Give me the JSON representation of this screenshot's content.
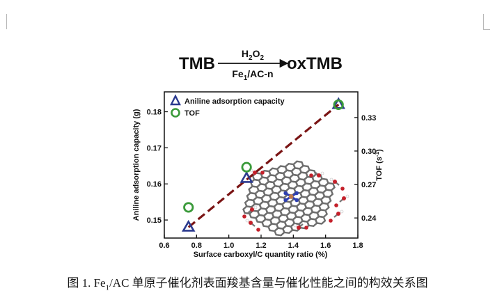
{
  "reaction": {
    "reactant": "TMB",
    "product": "oxTMB",
    "reagent_above": "H",
    "reagent_above_sub": "2",
    "reagent_above_tail": "O",
    "reagent_above_sub2": "2",
    "catalyst_main": "Fe",
    "catalyst_sub": "1",
    "catalyst_tail": "/AC-n"
  },
  "chart_data": {
    "type": "scatter",
    "xlabel": "Surface carboxyl/C quantity ratio (%)",
    "ylabel_left": "Aniline adsorption capacity (g)",
    "ylabel_right": "TOF (s",
    "ylabel_right_sup": "-1",
    "ylabel_right_tail": ")",
    "xlim": [
      0.6,
      1.8
    ],
    "xticks": [
      "0.6",
      "0.8",
      "1.0",
      "1.2",
      "1.4",
      "1.6",
      "1.8"
    ],
    "xtick_values": [
      0.6,
      0.8,
      1.0,
      1.2,
      1.4,
      1.6,
      1.8
    ],
    "ylim_left": [
      0.145,
      0.1855
    ],
    "yticks_left": [
      "0.15",
      "0.16",
      "0.17",
      "0.18"
    ],
    "ytick_values_left": [
      0.15,
      0.16,
      0.17,
      0.18
    ],
    "ylim_right": [
      0.222,
      0.353
    ],
    "yticks_right": [
      "0.24",
      "0.27",
      "0.30",
      "0.33"
    ],
    "ytick_values_right": [
      0.24,
      0.27,
      0.3,
      0.33
    ],
    "series": [
      {
        "name": "Aniline adsorption capacity",
        "marker": "triangle",
        "color": "#2b3a8f",
        "axis": "left",
        "x": [
          0.75,
          1.11,
          1.68
        ],
        "y": [
          0.148,
          0.1615,
          0.182
        ]
      },
      {
        "name": "TOF",
        "marker": "circle",
        "color": "#3a9a3a",
        "axis": "right",
        "x": [
          0.75,
          1.11,
          1.68
        ],
        "y": [
          0.2495,
          0.2855,
          0.3415
        ]
      }
    ],
    "trendline": {
      "style": "dashed",
      "color": "#7a1414",
      "x": [
        0.75,
        1.68
      ],
      "y_left": [
        0.148,
        0.182
      ]
    },
    "legend_position": "top-left",
    "inset": "graphene-sheet-model"
  },
  "caption": {
    "prefix": "图 1. Fe",
    "sub": "1",
    "text": "/AC 单原子催化剂表面羧基含量与催化性能之间的构效关系图"
  },
  "colors": {
    "triangle": "#2b3a8f",
    "circle": "#3a9a3a",
    "trend": "#7a1414",
    "lattice": "#6e6e6e",
    "nitrogen": "#2e3fb0",
    "iron": "#c07a4a",
    "oxygen": "#c4202a"
  }
}
